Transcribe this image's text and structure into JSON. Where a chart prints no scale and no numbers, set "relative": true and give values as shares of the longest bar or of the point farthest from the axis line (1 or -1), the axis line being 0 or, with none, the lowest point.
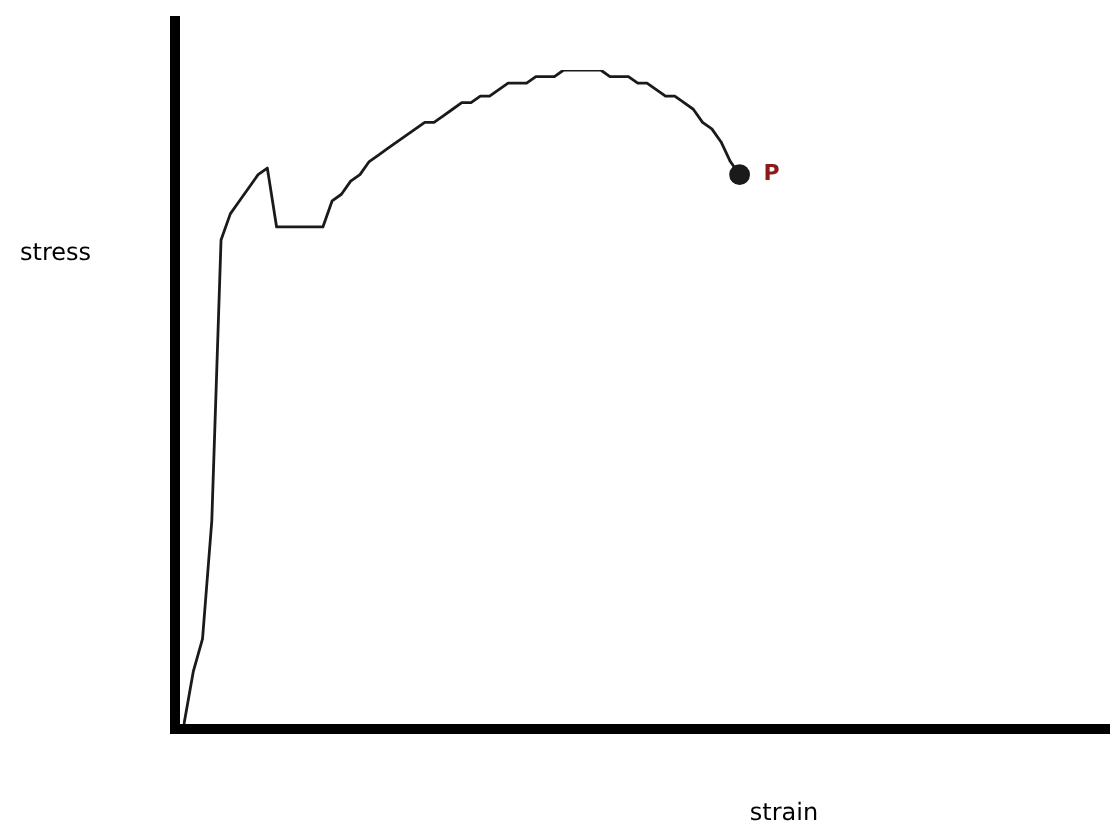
{
  "chart_data": {
    "type": "line",
    "relative": true,
    "xlabel": "strain",
    "ylabel": "stress",
    "marker": "none",
    "line_style": "solid",
    "annotations": [
      "P"
    ],
    "categories": [
      null,
      null,
      null,
      null,
      null,
      null,
      null,
      null,
      null,
      null,
      null,
      null,
      null,
      null,
      null,
      null,
      null,
      null,
      null,
      null,
      null,
      null,
      null,
      null,
      null,
      null,
      null,
      null,
      null,
      null,
      null,
      null,
      null,
      null,
      null,
      null,
      null,
      null,
      null,
      null,
      null,
      null,
      null,
      null,
      null,
      null,
      null,
      null,
      null,
      null,
      null,
      null,
      null,
      null,
      null,
      null,
      null,
      null,
      null,
      null,
      null,
      null,
      null,
      null,
      null,
      null,
      null,
      null,
      null,
      null,
      null,
      null,
      null,
      null,
      null,
      null,
      null,
      null,
      null,
      null,
      null,
      null,
      null,
      null,
      null,
      null,
      null,
      null,
      null,
      null,
      null,
      null,
      null,
      null,
      null,
      null,
      null,
      null,
      null,
      null,
      null
    ],
    "series": [
      {
        "color": "#1a1a1a",
        "values": [
          0,
          0.08,
          0.13,
          0.31,
          0.74,
          0.78,
          0.8,
          0.82,
          0.84,
          0.85,
          0.76,
          0.76,
          0.76,
          0.76,
          0.76,
          0.76,
          0.8,
          0.81,
          0.83,
          0.84,
          0.86,
          0.87,
          0.88,
          0.89,
          0.9,
          0.91,
          0.92,
          0.92,
          0.93,
          0.94,
          0.95,
          0.95,
          0.96,
          0.96,
          0.97,
          0.98,
          0.98,
          0.98,
          0.99,
          0.99,
          0.99,
          1.0,
          1.0,
          1.0,
          1.0,
          1.0,
          0.99,
          0.99,
          0.99,
          0.98,
          0.98,
          0.97,
          0.96,
          0.96,
          0.95,
          0.94,
          0.92,
          0.91,
          0.89,
          0.86,
          0.84,
          null,
          null,
          null,
          null,
          null,
          null,
          null,
          null,
          null,
          null,
          null,
          null,
          null,
          null,
          null,
          null,
          null,
          null,
          null,
          null,
          null,
          null,
          null,
          null,
          null,
          null,
          null,
          null,
          null,
          null,
          null,
          null,
          null,
          null,
          null,
          null,
          null,
          null,
          null,
          null
        ]
      }
    ]
  }
}
